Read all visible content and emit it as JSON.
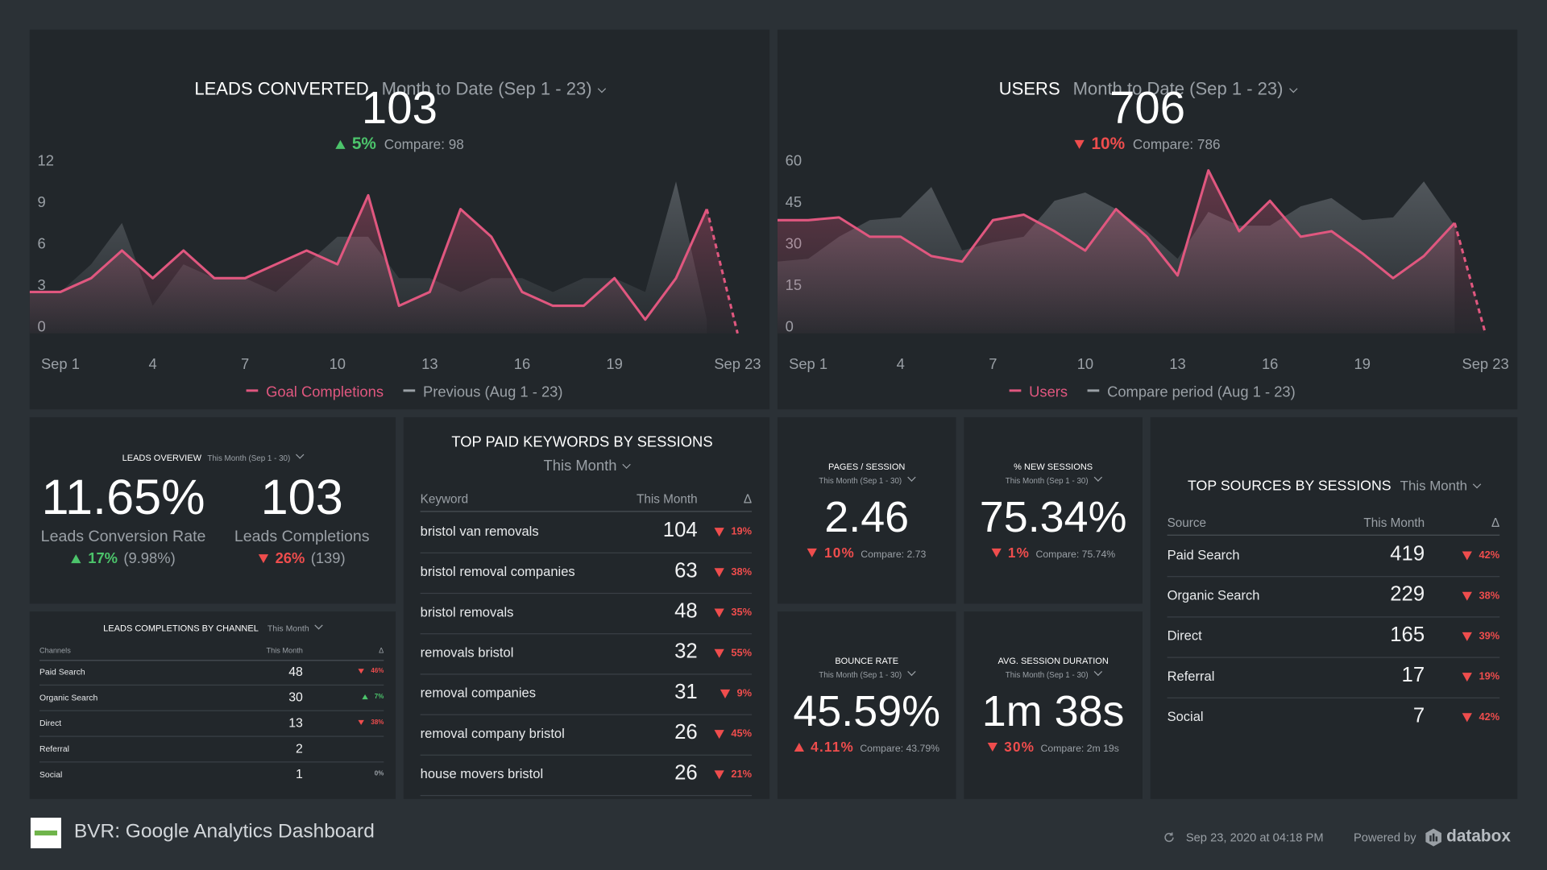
{
  "chart_data": [
    {
      "type": "line",
      "title": "LEADS CONVERTED",
      "period": "Month to Date (Sep 1 - 23)",
      "value": 103,
      "change": "5%",
      "trend": "up",
      "trend_color": "#4cc46b",
      "compare": "Compare: 98",
      "categories": [
        null,
        "Sep 1",
        null,
        null,
        "4",
        null,
        null,
        "7",
        null,
        null,
        "10",
        null,
        null,
        "13",
        null,
        null,
        "16",
        null,
        null,
        "19",
        null,
        null,
        null,
        "Sep 23"
      ],
      "series": [
        {
          "name": "Goal Completions",
          "color": "#e0577f",
          "values": [
            3,
            3,
            4,
            6,
            4,
            6,
            4,
            4,
            5,
            6,
            5,
            10,
            2,
            3,
            9,
            7,
            3,
            2,
            2,
            4,
            1,
            4,
            9,
            0
          ]
        },
        {
          "name": "Previous (Aug 1 - 23)",
          "color": "#8a9096",
          "values": [
            3,
            3,
            5,
            8,
            2,
            5,
            4,
            4,
            3,
            5,
            7,
            7,
            4,
            4,
            3,
            4,
            4,
            3,
            4,
            4,
            3,
            11,
            1,
            null
          ]
        }
      ],
      "ylim": [
        0,
        12
      ],
      "yticks": [
        0,
        3,
        6,
        9,
        12
      ]
    },
    {
      "type": "line",
      "title": "USERS",
      "period": "Month to Date (Sep 1 - 23)",
      "value": 706,
      "change": "10%",
      "trend": "down",
      "trend_color": "#ef4d4d",
      "compare": "Compare: 786",
      "categories": [
        null,
        "Sep 1",
        null,
        null,
        "4",
        null,
        null,
        "7",
        null,
        null,
        "10",
        null,
        null,
        "13",
        null,
        null,
        "16",
        null,
        null,
        "19",
        null,
        null,
        null,
        "Sep 23"
      ],
      "series": [
        {
          "name": "Users",
          "color": "#e0577f",
          "values": [
            41,
            41,
            42,
            35,
            35,
            28,
            26,
            41,
            43,
            37,
            30,
            45,
            35,
            21,
            59,
            37,
            48,
            35,
            37,
            29,
            20,
            28,
            40,
            0
          ]
        },
        {
          "name": "Compare period (Aug 1 - 23)",
          "color": "#8a9096",
          "values": [
            26,
            27,
            35,
            41,
            42,
            53,
            30,
            33,
            35,
            48,
            51,
            45,
            37,
            27,
            44,
            39,
            39,
            46,
            49,
            41,
            42,
            55,
            39,
            null
          ]
        }
      ],
      "ylim": [
        0,
        60
      ],
      "yticks": [
        0,
        15,
        30,
        45,
        60
      ]
    }
  ],
  "leads_overview": {
    "title": "LEADS OVERVIEW",
    "period": "This Month (Sep 1 - 30)",
    "metrics": [
      {
        "value": "11.65%",
        "label": "Leads Conversion Rate",
        "change": "17%",
        "trend": "up",
        "color": "#4cc46b",
        "compare": "(9.98%)"
      },
      {
        "value": "103",
        "label": "Leads Completions",
        "change": "26%",
        "trend": "down",
        "color": "#ef4d4d",
        "compare": "(139)"
      }
    ]
  },
  "channels": {
    "title": "LEADS COMPLETIONS BY CHANNEL",
    "period": "This Month",
    "columns": [
      "Channels",
      "This Month",
      "Δ"
    ],
    "rows": [
      {
        "name": "Paid Search",
        "value": 48,
        "change": "46%",
        "trend": "down",
        "color": "#ef4d4d"
      },
      {
        "name": "Organic Search",
        "value": 30,
        "change": "7%",
        "trend": "up",
        "color": "#4cc46b"
      },
      {
        "name": "Direct",
        "value": 13,
        "change": "38%",
        "trend": "down",
        "color": "#ef4d4d"
      },
      {
        "name": "Referral",
        "value": 2
      },
      {
        "name": "Social",
        "value": 1,
        "change": "0%",
        "color": "#9aa0a6"
      }
    ]
  },
  "keywords": {
    "title": "TOP PAID KEYWORDS BY SESSIONS",
    "period": "This Month",
    "columns": [
      "Keyword",
      "This Month",
      "Δ"
    ],
    "rows": [
      {
        "name": "bristol van removals",
        "value": 104,
        "change": "19%",
        "trend": "down",
        "color": "#ef4d4d"
      },
      {
        "name": "bristol removal companies",
        "value": 63,
        "change": "38%",
        "trend": "down",
        "color": "#ef4d4d"
      },
      {
        "name": "bristol removals",
        "value": 48,
        "change": "35%",
        "trend": "down",
        "color": "#ef4d4d"
      },
      {
        "name": "removals bristol",
        "value": 32,
        "change": "55%",
        "trend": "down",
        "color": "#ef4d4d"
      },
      {
        "name": "removal companies",
        "value": 31,
        "change": "9%",
        "trend": "down",
        "color": "#ef4d4d"
      },
      {
        "name": "removal company bristol",
        "value": 26,
        "change": "45%",
        "trend": "down",
        "color": "#ef4d4d"
      },
      {
        "name": "house movers bristol",
        "value": 26,
        "change": "21%",
        "trend": "down",
        "color": "#ef4d4d"
      }
    ]
  },
  "kpis": [
    {
      "title": "PAGES / SESSION",
      "period": "This Month (Sep 1 - 30)",
      "value": "2.46",
      "change": "10%",
      "trend": "down",
      "color": "#ef4d4d",
      "compare": "Compare: 2.73"
    },
    {
      "title": "% NEW SESSIONS",
      "period": "This Month (Sep 1 - 30)",
      "value": "75.34%",
      "change": "1%",
      "trend": "down",
      "color": "#ef4d4d",
      "compare": "Compare: 75.74%"
    },
    {
      "title": "BOUNCE RATE",
      "period": "This Month (Sep 1 - 30)",
      "value": "45.59%",
      "change": "4.11%",
      "trend": "up",
      "color": "#ef4d4d",
      "compare": "Compare: 43.79%"
    },
    {
      "title": "AVG. SESSION DURATION",
      "period": "This Month (Sep 1 - 30)",
      "value": "1m 38s",
      "change": "30%",
      "trend": "down",
      "color": "#ef4d4d",
      "compare": "Compare: 2m 19s"
    }
  ],
  "sources": {
    "title": "TOP SOURCES BY SESSIONS",
    "period": "This Month",
    "columns": [
      "Source",
      "This Month",
      "Δ"
    ],
    "rows": [
      {
        "name": "Paid Search",
        "value": 419,
        "change": "42%",
        "trend": "down",
        "color": "#ef4d4d"
      },
      {
        "name": "Organic Search",
        "value": 229,
        "change": "38%",
        "trend": "down",
        "color": "#ef4d4d"
      },
      {
        "name": "Direct",
        "value": 165,
        "change": "39%",
        "trend": "down",
        "color": "#ef4d4d"
      },
      {
        "name": "Referral",
        "value": 17,
        "change": "19%",
        "trend": "down",
        "color": "#ef4d4d"
      },
      {
        "name": "Social",
        "value": 7,
        "change": "42%",
        "trend": "down",
        "color": "#ef4d4d"
      }
    ]
  },
  "footer": {
    "title": "BVR: Google Analytics Dashboard",
    "updated": "Sep 23, 2020 at 04:18 PM",
    "powered": "Powered by",
    "brand": "databox"
  }
}
